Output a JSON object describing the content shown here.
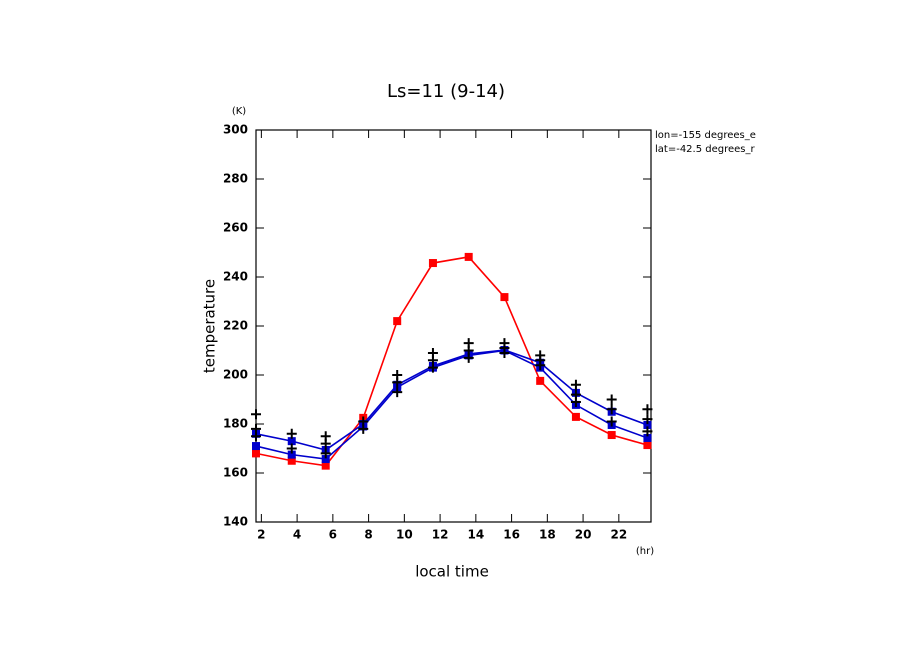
{
  "chart_data": {
    "type": "line",
    "title": "Ls=11 (9-14)",
    "xlabel": "local time",
    "ylabel": "temperature",
    "x_unit": "(hr)",
    "y_unit": "(K)",
    "annotations": [
      "lon=-155 degrees_e",
      "lat=-42.5 degrees_r"
    ],
    "x": [
      1.7,
      3.7,
      5.6,
      7.7,
      9.6,
      11.6,
      13.6,
      15.6,
      17.6,
      19.6,
      21.6,
      23.6
    ],
    "xlim": [
      1.7,
      23.8
    ],
    "xticks": [
      2,
      4,
      6,
      8,
      10,
      12,
      14,
      16,
      18,
      20,
      22
    ],
    "ylim": [
      140,
      300
    ],
    "yticks": [
      140,
      160,
      180,
      200,
      220,
      240,
      260,
      280,
      300
    ],
    "series": [
      {
        "color": "#ff0000",
        "marker": "square",
        "values": [
          168,
          165,
          163,
          182.5,
          222,
          245.7,
          248.2,
          231.8,
          197.6,
          182.9,
          175.5,
          171.4
        ]
      },
      {
        "color": "#0000cc",
        "marker": "square",
        "values": [
          171,
          167.5,
          165.7,
          179,
          195,
          203,
          208,
          210,
          203,
          187.8,
          179.6,
          174.3
        ]
      },
      {
        "color": "#0000cc",
        "marker": "square",
        "values": [
          176,
          173,
          169.4,
          180,
          196,
          203.7,
          208.6,
          210.2,
          205,
          192.7,
          185,
          179.6
        ]
      },
      {
        "color": "#000000",
        "marker": "plus",
        "x": [
          1.7,
          1.7,
          1.7,
          3.7,
          3.7,
          5.6,
          5.6,
          5.6,
          7.7,
          7.7,
          9.6,
          9.6,
          9.6,
          11.6,
          11.6,
          11.6,
          13.6,
          13.6,
          13.6,
          15.6,
          15.6,
          15.6,
          17.6,
          17.6,
          17.6,
          19.6,
          19.6,
          19.6,
          21.6,
          21.6,
          21.6,
          23.6,
          23.6,
          23.6
        ],
        "values": [
          175,
          178,
          184,
          170,
          176,
          168,
          172,
          175,
          178,
          181,
          193,
          197,
          200,
          203,
          206,
          209,
          207,
          210,
          213,
          209,
          211,
          213,
          204,
          206,
          208,
          189,
          192,
          196,
          181,
          186,
          190,
          177,
          182,
          186
        ]
      }
    ]
  }
}
